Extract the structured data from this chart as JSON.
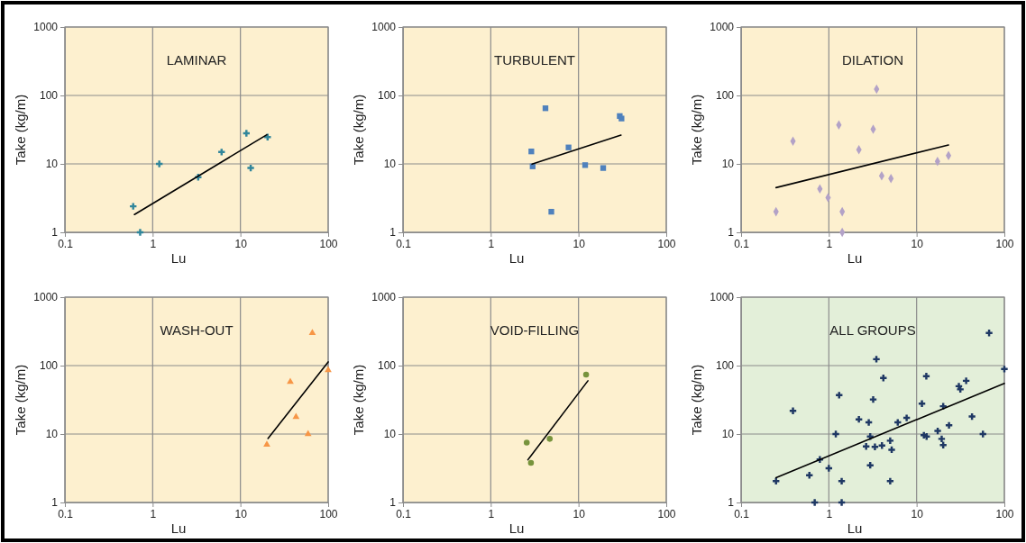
{
  "chart_data": [
    {
      "type": "scatter",
      "title": "LAMINAR",
      "xlabel": "Lu",
      "ylabel": "Take (kg/m)",
      "log": "xy",
      "grid": true,
      "xlim": [
        0.1,
        100
      ],
      "xticks": [
        0.1,
        1,
        10,
        100
      ],
      "ylim": [
        1,
        1000
      ],
      "yticks": [
        1,
        10,
        100,
        1000
      ],
      "series": [
        {
          "type": "scatter",
          "color": "#31869b",
          "marker": "cross",
          "x": [
            0.6,
            0.72,
            1.19,
            3.3,
            6.1,
            11.7,
            13.1,
            20.4
          ],
          "values": [
            2.4,
            1.0,
            10,
            6.4,
            14.9,
            28,
            8.7,
            24.6
          ]
        },
        {
          "type": "line",
          "color": "#000000",
          "x": [
            0.62,
            20
          ],
          "values": [
            1.82,
            26.7
          ]
        }
      ]
    },
    {
      "type": "scatter",
      "title": "TURBULENT",
      "xlabel": "Lu",
      "ylabel": "Take (kg/m)",
      "log": "xy",
      "grid": true,
      "xlim": [
        0.1,
        100
      ],
      "xticks": [
        0.1,
        1,
        10,
        100
      ],
      "ylim": [
        1,
        1000
      ],
      "yticks": [
        1,
        10,
        100,
        1000
      ],
      "series": [
        {
          "type": "scatter",
          "color": "#4f81bd",
          "marker": "square",
          "x": [
            4.2,
            2.9,
            3.0,
            7.7,
            4.9,
            11.9,
            19.1,
            29.5,
            30.9
          ],
          "values": [
            65,
            15.2,
            9.2,
            17.4,
            2.0,
            9.6,
            8.7,
            50,
            46
          ]
        },
        {
          "type": "line",
          "color": "#000000",
          "x": [
            2.95,
            30.5
          ],
          "values": [
            9.9,
            26.3
          ]
        }
      ]
    },
    {
      "type": "scatter",
      "title": "DILATION",
      "xlabel": "Lu",
      "ylabel": "Take (kg/m)",
      "log": "xy",
      "grid": true,
      "xlim": [
        0.1,
        100
      ],
      "xticks": [
        0.1,
        1,
        10,
        100
      ],
      "ylim": [
        1,
        1000
      ],
      "yticks": [
        1,
        10,
        100,
        1000
      ],
      "series": [
        {
          "type": "scatter",
          "color": "#b3a2c7",
          "marker": "diamond",
          "x": [
            0.25,
            0.39,
            0.79,
            0.98,
            1.3,
            1.42,
            1.42,
            2.2,
            3.2,
            3.5,
            4.0,
            5.1,
            17.3,
            23.1
          ],
          "values": [
            2.0,
            21.5,
            4.3,
            3.2,
            37,
            2.0,
            1.0,
            16.1,
            32,
            124,
            6.7,
            6.1,
            10.9,
            13.2
          ]
        },
        {
          "type": "line",
          "color": "#000000",
          "x": [
            0.25,
            23.1
          ],
          "values": [
            4.5,
            18.9
          ]
        }
      ]
    },
    {
      "type": "scatter",
      "title": "WASH-OUT",
      "xlabel": "Lu",
      "ylabel": "Take (kg/m)",
      "log": "xy",
      "grid": true,
      "xlim": [
        0.1,
        100
      ],
      "xticks": [
        0.1,
        1,
        10,
        100
      ],
      "ylim": [
        1,
        1000
      ],
      "yticks": [
        1,
        10,
        100,
        1000
      ],
      "series": [
        {
          "type": "scatter",
          "color": "#f79646",
          "marker": "triangle",
          "x": [
            20,
            37,
            43,
            59,
            66,
            100
          ],
          "values": [
            7,
            58,
            17.8,
            10,
            300,
            86
          ]
        },
        {
          "type": "line",
          "color": "#000000",
          "x": [
            20.6,
            100
          ],
          "values": [
            8.6,
            113
          ]
        }
      ]
    },
    {
      "type": "scatter",
      "title": "VOID-FILLING",
      "xlabel": "Lu",
      "ylabel": "Take (kg/m)",
      "log": "xy",
      "grid": true,
      "xlim": [
        0.1,
        100
      ],
      "xticks": [
        0.1,
        1,
        10,
        100
      ],
      "ylim": [
        1,
        1000
      ],
      "yticks": [
        1,
        10,
        100,
        1000
      ],
      "series": [
        {
          "type": "scatter",
          "color": "#77933c",
          "marker": "circle",
          "x": [
            2.57,
            2.87,
            4.7,
            12.2
          ],
          "values": [
            7.5,
            3.8,
            8.5,
            74
          ]
        },
        {
          "type": "line",
          "color": "#000000",
          "x": [
            2.65,
            12.8
          ],
          "values": [
            4.2,
            60
          ]
        }
      ]
    },
    {
      "type": "scatter",
      "title": "ALL  GROUPS",
      "xlabel": "Lu",
      "ylabel": "Take (kg/m)",
      "log": "xy",
      "grid": true,
      "xlim": [
        0.1,
        100
      ],
      "xticks": [
        0.1,
        1,
        10,
        100
      ],
      "ylim": [
        1,
        1000
      ],
      "yticks": [
        1,
        10,
        100,
        1000
      ],
      "series": [
        {
          "type": "scatter",
          "color": "#1f3864",
          "marker": "cross",
          "x": [
            0.25,
            0.39,
            0.6,
            0.69,
            0.79,
            1.0,
            1.2,
            1.31,
            1.4,
            1.4,
            2.2,
            2.66,
            2.85,
            2.96,
            2.96,
            3.2,
            3.35,
            3.48,
            4.03,
            4.18,
            5.0,
            5.0,
            5.2,
            6.1,
            7.7,
            11.5,
            12.1,
            12.9,
            13,
            17.4,
            19.3,
            20.1,
            20.1,
            23.4,
            30.3,
            31.5,
            36.7,
            42.8,
            57,
            67,
            100
          ],
          "values": [
            2.05,
            21.8,
            2.5,
            1,
            4.25,
            3.16,
            10,
            37,
            2.05,
            1,
            16.4,
            6.6,
            14.8,
            9.2,
            3.5,
            32,
            6.5,
            124,
            6.8,
            66,
            8,
            2.05,
            5.9,
            14.8,
            17.2,
            27.8,
            9.6,
            70,
            9.2,
            11.1,
            8.5,
            25.5,
            6.9,
            13.4,
            50,
            45,
            60,
            18,
            10,
            300,
            89
          ]
        },
        {
          "type": "line",
          "color": "#000000",
          "x": [
            0.25,
            100
          ],
          "values": [
            2.3,
            55
          ]
        }
      ]
    }
  ]
}
